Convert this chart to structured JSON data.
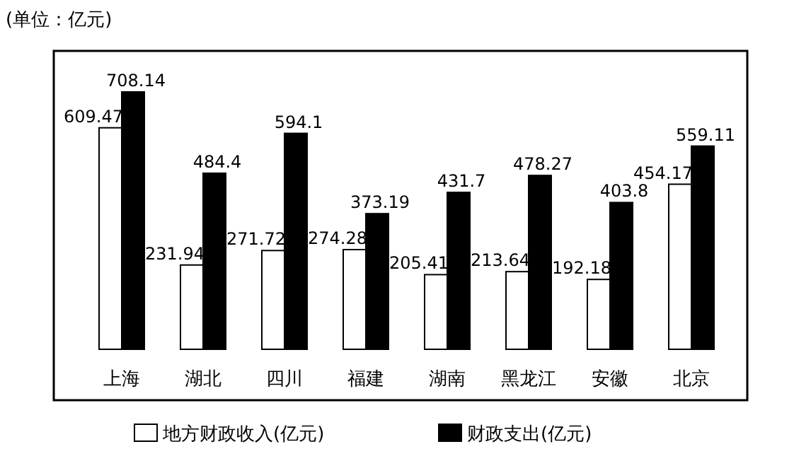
{
  "chart_data": {
    "type": "bar",
    "annotations": [
      "(单位：亿元)"
    ],
    "categories": [
      "上海",
      "湖北",
      "四川",
      "福建",
      "湖南",
      "黑龙江",
      "安徽",
      "北京"
    ],
    "series": [
      {
        "name": "地方财政收入(亿元)",
        "color": "#ffffff",
        "values": [
          609.47,
          231.94,
          271.72,
          274.28,
          205.41,
          213.64,
          192.18,
          454.17
        ]
      },
      {
        "name": "财政支出(亿元)",
        "color": "#000000",
        "values": [
          708.14,
          484.4,
          594.1,
          373.19,
          431.7,
          478.27,
          403.8,
          559.11
        ]
      }
    ],
    "data_labels": true,
    "legend": "bottom"
  }
}
